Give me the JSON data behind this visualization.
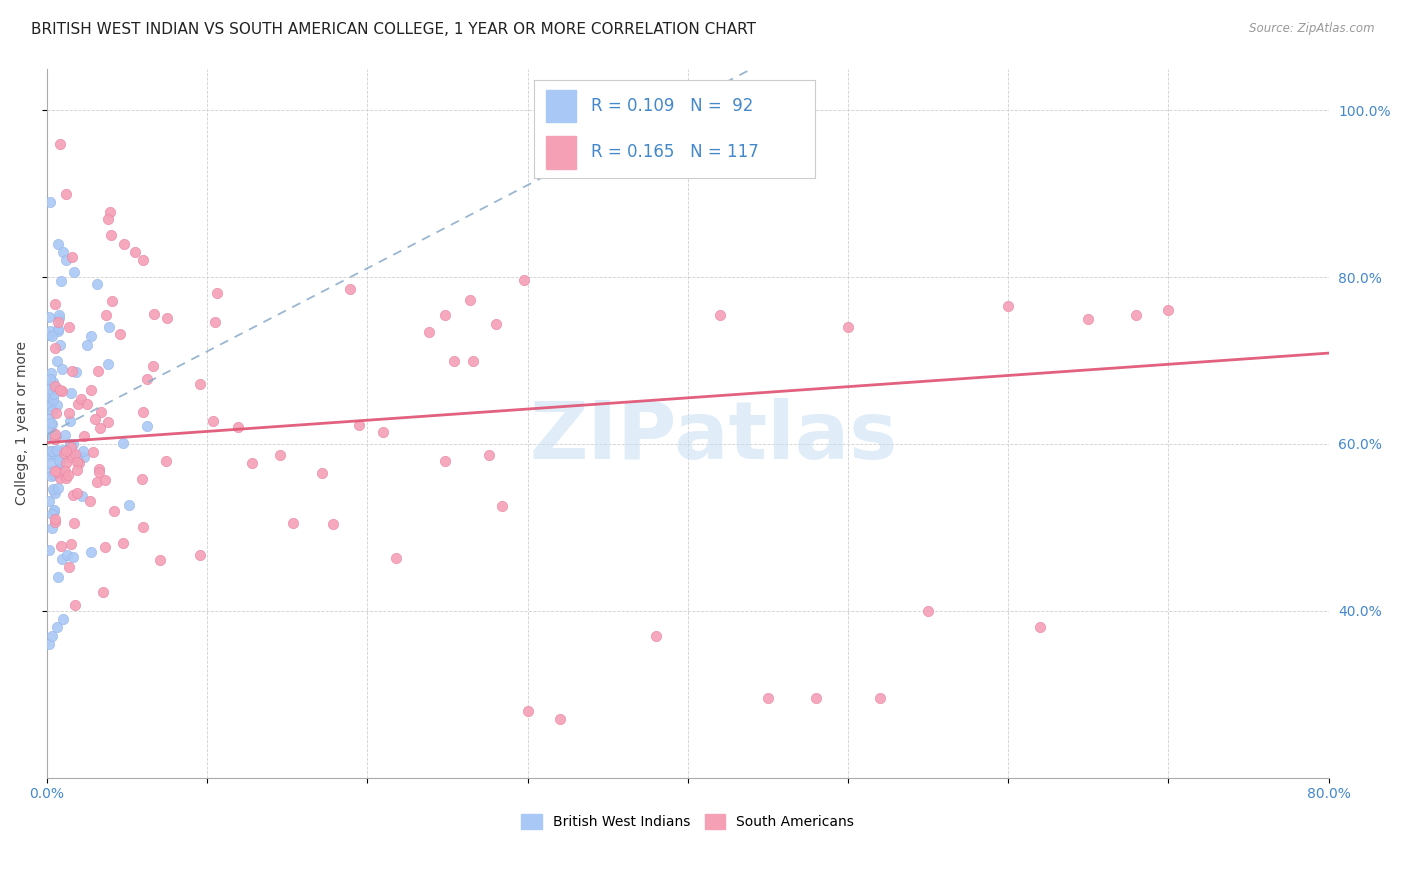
{
  "title": "BRITISH WEST INDIAN VS SOUTH AMERICAN COLLEGE, 1 YEAR OR MORE CORRELATION CHART",
  "source": "Source: ZipAtlas.com",
  "ylabel": "College, 1 year or more",
  "x_min": 0.0,
  "x_max": 0.8,
  "y_min": 0.2,
  "y_max": 1.05,
  "y_ticks_right": [
    0.4,
    0.6,
    0.8,
    1.0
  ],
  "y_tick_labels_right": [
    "40.0%",
    "60.0%",
    "80.0%",
    "100.0%"
  ],
  "blue_color": "#aac8f5",
  "pink_color": "#f5a0b5",
  "blue_R": 0.109,
  "blue_N": 92,
  "pink_R": 0.165,
  "pink_N": 117,
  "watermark": "ZIPatlas",
  "watermark_color": "#c8dff5",
  "legend_color": "#4488cc",
  "title_fontsize": 11,
  "axis_label_fontsize": 10,
  "tick_fontsize": 10
}
